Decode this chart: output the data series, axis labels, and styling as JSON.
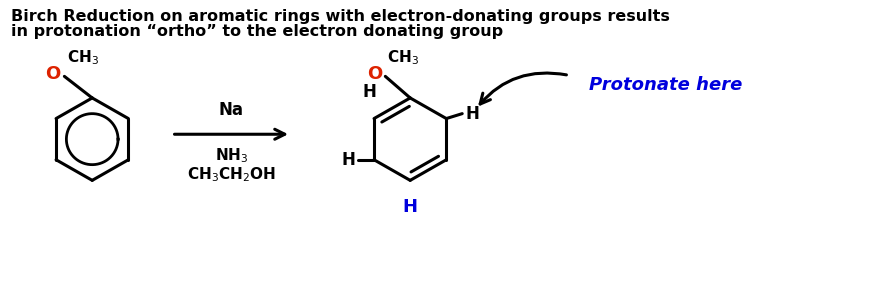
{
  "title_line1": "Birch Reduction on aromatic rings with electron-donating groups results",
  "title_line2": "in protonation “ortho” to the electron donating group",
  "title_fontsize": 11.5,
  "bg_color": "#ffffff",
  "black": "#000000",
  "red": "#dd2200",
  "blue": "#0000dd",
  "reagents_line1": "Na",
  "reagents_line2": "NH₃",
  "reagents_line3": "CH₃CH₂OH",
  "protonate_text": "Protonate here"
}
